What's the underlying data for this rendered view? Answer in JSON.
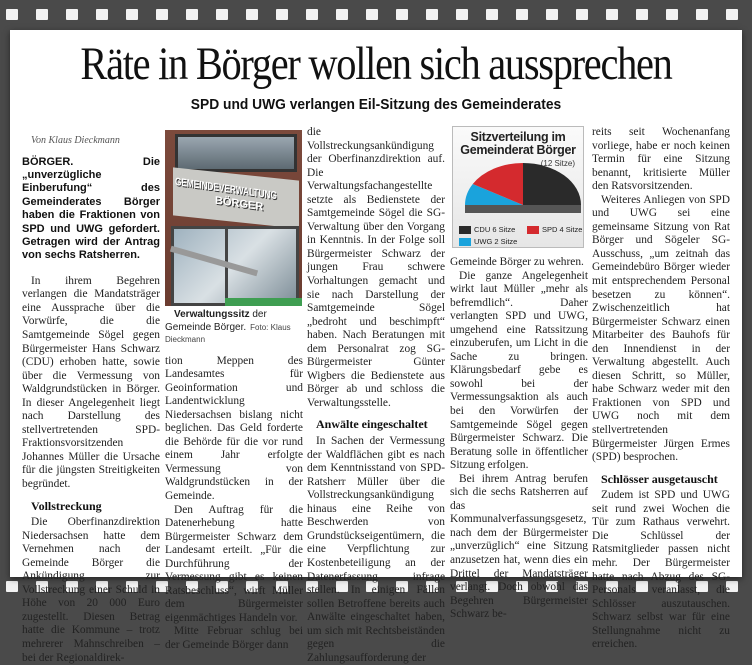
{
  "headline": "Räte in Börger wollen sich aussprechen",
  "subheadline": "SPD und UWG verlangen Eil-Sitzung des Gemeinderates",
  "byline": "Von Klaus Dieckmann",
  "lead": "BÖRGER. Die „unverzügliche Einberufung“ des Gemeinderates Börger haben die Fraktionen von SPD und UWG gefordert. Getragen wird der Antrag von sechs Ratsherren.",
  "col1": {
    "p1": "In ihrem Begehren verlangen die Mandatsträger eine Aussprache über die Vorwürfe, die die Samtgemeinde Sögel gegen Bürgermeister Hans Schwarz (CDU) erhoben hatte, sowie über die Vermessung von Waldgrundstücken in Börger. In dieser Angelegenheit liegt nach Darstellung des stellvertretenden SPD-Fraktionsvorsitzenden Johannes Müller die Ursache für die jüngsten Streitigkeiten begründet.",
    "sub1": "Vollstreckung",
    "p2": "Die Oberfinanzdirektion Niedersachsen hatte dem Vernehmen nach der Gemeinde Börger die Ankündigung zur Vollstreckung einer Schuld in Höhe von 20 000 Euro zugestellt. Diesen Betrag hatte die Kommune – trotz mehrerer Mahnschreiben – bei der Regionaldirek-"
  },
  "photo": {
    "sign_line1": "GEMEINDEVERWALTUNG",
    "sign_line2": "BÖRGER",
    "caption_bold": "Verwaltungssitz",
    "caption": " der Gemeinde Börger.",
    "credit": "Foto: Klaus Dieckmann"
  },
  "col2": {
    "p1": "tion Meppen des Landesamtes für Geoinformation und Landentwicklung Niedersachsen bislang nicht beglichen. Das Geld forderte die Behörde für die vor rund einem Jahr erfolgte Vermessung von Waldgrundstücken in der Gemeinde.",
    "p2": "Den Auftrag für die Datenerhebung hatte Bürgermeister Schwarz dem Landesamt erteilt. „Für die Durchführung der Vermessung gibt es keinen Ratsbeschluss“, wirft Müller dem Bürgermeister eigenmächtiges Handeln vor.",
    "p3": "Mitte Februar schlug bei der Gemeinde Börger dann"
  },
  "col3": {
    "p1": "die Vollstreckungsankündigung der Oberfinanzdirektion auf. Die Verwaltungsfachangestellte setzte als Bedienstete der Samtgemeinde Sögel die SG-Verwaltung über den Vorgang in Kenntnis. In der Folge soll Bürgermeister Schwarz der jungen Frau schwere Vorhaltungen gemacht und sie nach Darstellung der Samtgemeinde Sögel „bedroht und beschimpft“ haben. Nach Beratungen mit dem Personalrat zog SG-Bürgermeister Günter Wigbers die Bedienstete aus Börger ab und schloss die Verwaltungsstelle.",
    "sub1": "Anwälte eingeschaltet",
    "p2": "In Sachen der Vermessung der Waldflächen gibt es nach dem Kenntnisstand von SPD-Ratsherr Müller über die Vollstreckungsankündigung hinaus eine Reihe von Beschwerden von Grundstückseigentümern, die eine Verpflichtung zur Kostenbeteiligung an der Datenerfassung infrage stellen. In einigen Fällen sollen Betroffene bereits auch Anwälte eingeschaltet haben, um sich mit Rechtsbeiständen gegen die Zahlungsaufforderung der"
  },
  "chart_data": {
    "type": "pie",
    "title": "Sitzverteilung im Gemeinderat Börger",
    "subtitle": "(12 Sitze)",
    "categories": [
      "CDU",
      "SPD",
      "UWG"
    ],
    "values": [
      6,
      4,
      2
    ],
    "legend": [
      "CDU 6 Sitze",
      "SPD 4 Sitze",
      "UWG 2 Sitze"
    ],
    "colors": [
      "#2a2a2a",
      "#d42a2e",
      "#1aa3dc"
    ]
  },
  "col4": {
    "p1": "Gemeinde Börger zu wehren.",
    "p2": "Die ganze Angelegenheit wirkt laut Müller „mehr als befremdlich“. Daher verlangten SPD und UWG, umgehend eine Ratssitzung einzuberufen, um Licht in die Sache zu bringen. Klärungsbedarf gebe es sowohl bei der Vermessungsaktion als auch bei den Vorwürfen der Samtgemeinde Sögel gegen Bürgermeister Schwarz. Die Beratung solle in öffentlicher Sitzung erfolgen.",
    "p3": "Bei ihrem Antrag berufen sich die sechs Ratsherren auf das Kommunalverfassungsgesetz, nach dem der Bürgermeister „unverzüglich“ eine Sitzung anzusetzen hat, wenn dies ein Drittel der Mandatsträger verlangt. Doch obwohl das Begehren Bürgermeister Schwarz be-"
  },
  "col5": {
    "p1": "reits seit Wochenanfang vorliege, habe er noch keinen Termin für eine Sitzung benannt, kritisierte Müller den Ratsvorsitzenden.",
    "p2": "Weiteres Anliegen von SPD und UWG sei eine gemeinsame Sitzung von Rat Börger und Sögeler SG-Ausschuss, „um zeitnah das Gemeindebüro Börger wieder mit entsprechendem Personal besetzen zu können“. Zwischenzeitlich hat Bürgermeister Schwarz einen Mitarbeiter des Bauhofs für den Innendienst in der Verwaltung abgestellt. Auch diesen Schritt, so Müller, habe Schwarz weder mit den Fraktionen von SPD und UWG noch mit dem stellvertretenden Bürgermeister Jürgen Ermes (SPD) besprochen.",
    "sub1": "Schlösser ausgetauscht",
    "p3": "Zudem ist SPD und UWG seit rund zwei Wochen die Tür zum Rathaus verwehrt. Die Schlüssel der Ratsmitglieder passen nicht mehr. Der Bürgermeister hatte nach Abzug des SG-Personals veranlasst, die Schlösser auszutauschen. Schwarz selbst war für eine Stellungnahme nicht zu erreichen."
  }
}
